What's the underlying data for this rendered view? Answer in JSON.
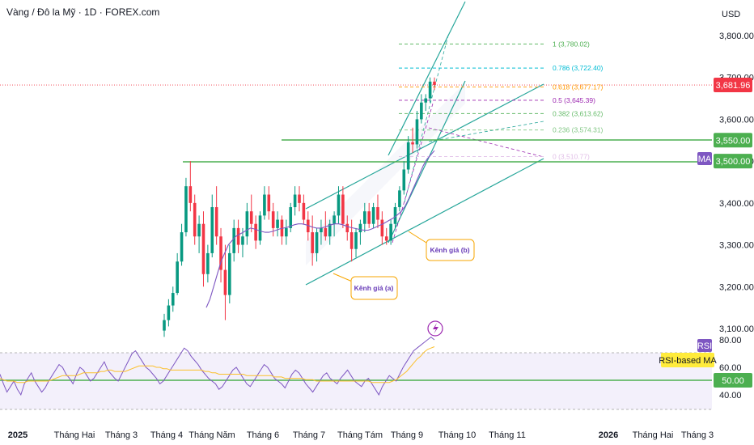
{
  "header": {
    "title": "Vàng / Đô la Mỹ · 1D · FOREX.com",
    "currency": "USD"
  },
  "chart_data": {
    "type": "candlestick",
    "title": "Vàng / Đô la Mỹ · 1D · FOREX.com",
    "price_axis": {
      "unit": "USD",
      "ticks": [
        "3,800.00",
        "3,700.00",
        "3,600.00",
        "3,500.00",
        "3,400.00",
        "3,300.00",
        "3,200.00",
        "3,100.00"
      ],
      "range": [
        3060,
        3870
      ]
    },
    "time_axis": {
      "labels": [
        "2025",
        "Tháng Hai",
        "Tháng 3",
        "Tháng 4",
        "Tháng Năm",
        "Tháng 6",
        "Tháng 7",
        "Tháng Tám",
        "Tháng 9",
        "Tháng 10",
        "Tháng 11",
        "2026",
        "Tháng Hai",
        "Tháng 3"
      ]
    },
    "price_tags": [
      {
        "label": "3,681.96",
        "value": 3681.96,
        "color": "#f23645"
      },
      {
        "label": "3,550.00",
        "value": 3550,
        "color": "#4caf50"
      },
      {
        "label": "3,500.00",
        "value": 3500,
        "color": "#4caf50"
      }
    ],
    "ma_tag": {
      "label": "MA",
      "color": "#7e57c2"
    },
    "horizontal_lines": [
      3550,
      3500
    ],
    "current_price": 3681.96,
    "fibonacci": [
      {
        "label": "1 (3,780.02)",
        "value": 3780.02,
        "color": "#4caf50"
      },
      {
        "label": "0.786 (3,722.40)",
        "value": 3722.4,
        "color": "#00bcd4"
      },
      {
        "label": "0.618 (3,677.17)",
        "value": 3677.17,
        "color": "#ff9800"
      },
      {
        "label": "0.5 (3,645.39)",
        "value": 3645.39,
        "color": "#9c27b0"
      },
      {
        "label": "0.382 (3,613.62)",
        "value": 3613.62,
        "color": "#66bb6a"
      },
      {
        "label": "0.236 (3,574.31)",
        "value": 3574.31,
        "color": "#81c784"
      },
      {
        "label": "0 (3,510.77)",
        "value": 3510.77,
        "color": "#e1bee7"
      }
    ],
    "annotations": [
      {
        "label": "Kênh giá (a)"
      },
      {
        "label": "Kênh giá (b)"
      }
    ],
    "candles": [
      {
        "o": 3095,
        "h": 3135,
        "l": 3080,
        "c": 3120
      },
      {
        "o": 3120,
        "h": 3170,
        "l": 3105,
        "c": 3155
      },
      {
        "o": 3155,
        "h": 3200,
        "l": 3140,
        "c": 3185
      },
      {
        "o": 3185,
        "h": 3280,
        "l": 3180,
        "c": 3260
      },
      {
        "o": 3260,
        "h": 3350,
        "l": 3250,
        "c": 3330
      },
      {
        "o": 3330,
        "h": 3460,
        "l": 3320,
        "c": 3440
      },
      {
        "o": 3440,
        "h": 3500,
        "l": 3380,
        "c": 3400
      },
      {
        "o": 3400,
        "h": 3420,
        "l": 3300,
        "c": 3320
      },
      {
        "o": 3320,
        "h": 3370,
        "l": 3280,
        "c": 3350
      },
      {
        "o": 3350,
        "h": 3380,
        "l": 3200,
        "c": 3230
      },
      {
        "o": 3230,
        "h": 3300,
        "l": 3210,
        "c": 3280
      },
      {
        "o": 3280,
        "h": 3420,
        "l": 3270,
        "c": 3390
      },
      {
        "o": 3390,
        "h": 3440,
        "l": 3300,
        "c": 3320
      },
      {
        "o": 3320,
        "h": 3340,
        "l": 3210,
        "c": 3240
      },
      {
        "o": 3240,
        "h": 3300,
        "l": 3120,
        "c": 3180
      },
      {
        "o": 3180,
        "h": 3300,
        "l": 3160,
        "c": 3280
      },
      {
        "o": 3280,
        "h": 3360,
        "l": 3260,
        "c": 3340
      },
      {
        "o": 3340,
        "h": 3360,
        "l": 3280,
        "c": 3300
      },
      {
        "o": 3300,
        "h": 3340,
        "l": 3270,
        "c": 3320
      },
      {
        "o": 3320,
        "h": 3400,
        "l": 3300,
        "c": 3380
      },
      {
        "o": 3380,
        "h": 3420,
        "l": 3330,
        "c": 3350
      },
      {
        "o": 3350,
        "h": 3370,
        "l": 3290,
        "c": 3310
      },
      {
        "o": 3310,
        "h": 3380,
        "l": 3300,
        "c": 3370
      },
      {
        "o": 3370,
        "h": 3440,
        "l": 3360,
        "c": 3420
      },
      {
        "o": 3420,
        "h": 3440,
        "l": 3360,
        "c": 3380
      },
      {
        "o": 3380,
        "h": 3400,
        "l": 3320,
        "c": 3340
      },
      {
        "o": 3340,
        "h": 3380,
        "l": 3320,
        "c": 3360
      },
      {
        "o": 3360,
        "h": 3370,
        "l": 3300,
        "c": 3320
      },
      {
        "o": 3320,
        "h": 3360,
        "l": 3300,
        "c": 3340
      },
      {
        "o": 3340,
        "h": 3400,
        "l": 3330,
        "c": 3390
      },
      {
        "o": 3390,
        "h": 3440,
        "l": 3370,
        "c": 3420
      },
      {
        "o": 3420,
        "h": 3440,
        "l": 3380,
        "c": 3400
      },
      {
        "o": 3400,
        "h": 3420,
        "l": 3350,
        "c": 3360
      },
      {
        "o": 3360,
        "h": 3380,
        "l": 3310,
        "c": 3330
      },
      {
        "o": 3330,
        "h": 3370,
        "l": 3250,
        "c": 3280
      },
      {
        "o": 3280,
        "h": 3340,
        "l": 3260,
        "c": 3330
      },
      {
        "o": 3330,
        "h": 3360,
        "l": 3300,
        "c": 3340
      },
      {
        "o": 3340,
        "h": 3380,
        "l": 3310,
        "c": 3320
      },
      {
        "o": 3320,
        "h": 3360,
        "l": 3300,
        "c": 3350
      },
      {
        "o": 3350,
        "h": 3380,
        "l": 3320,
        "c": 3370
      },
      {
        "o": 3370,
        "h": 3440,
        "l": 3350,
        "c": 3420
      },
      {
        "o": 3420,
        "h": 3440,
        "l": 3340,
        "c": 3350
      },
      {
        "o": 3350,
        "h": 3370,
        "l": 3310,
        "c": 3330
      },
      {
        "o": 3330,
        "h": 3360,
        "l": 3260,
        "c": 3290
      },
      {
        "o": 3290,
        "h": 3340,
        "l": 3270,
        "c": 3330
      },
      {
        "o": 3330,
        "h": 3360,
        "l": 3300,
        "c": 3350
      },
      {
        "o": 3350,
        "h": 3400,
        "l": 3330,
        "c": 3380
      },
      {
        "o": 3380,
        "h": 3400,
        "l": 3340,
        "c": 3350
      },
      {
        "o": 3350,
        "h": 3400,
        "l": 3340,
        "c": 3390
      },
      {
        "o": 3390,
        "h": 3420,
        "l": 3340,
        "c": 3360
      },
      {
        "o": 3360,
        "h": 3380,
        "l": 3300,
        "c": 3320
      },
      {
        "o": 3320,
        "h": 3340,
        "l": 3300,
        "c": 3310
      },
      {
        "o": 3310,
        "h": 3360,
        "l": 3300,
        "c": 3350
      },
      {
        "o": 3350,
        "h": 3400,
        "l": 3340,
        "c": 3390
      },
      {
        "o": 3390,
        "h": 3440,
        "l": 3380,
        "c": 3430
      },
      {
        "o": 3430,
        "h": 3500,
        "l": 3420,
        "c": 3480
      },
      {
        "o": 3480,
        "h": 3560,
        "l": 3470,
        "c": 3545
      },
      {
        "o": 3545,
        "h": 3580,
        "l": 3520,
        "c": 3540
      },
      {
        "o": 3540,
        "h": 3620,
        "l": 3530,
        "c": 3600
      },
      {
        "o": 3600,
        "h": 3660,
        "l": 3590,
        "c": 3640
      },
      {
        "o": 3640,
        "h": 3660,
        "l": 3620,
        "c": 3650
      },
      {
        "o": 3650,
        "h": 3700,
        "l": 3640,
        "c": 3690
      },
      {
        "o": 3690,
        "h": 3700,
        "l": 3670,
        "c": 3682
      }
    ],
    "ma": [
      3150,
      3170,
      3200,
      3230,
      3260,
      3280,
      3300,
      3310,
      3320,
      3325,
      3330,
      3335,
      3340,
      3338,
      3335,
      3332,
      3330,
      3330,
      3332,
      3335,
      3338,
      3340,
      3342,
      3345,
      3348,
      3350,
      3350,
      3348,
      3345,
      3342,
      3340,
      3340,
      3342,
      3345,
      3348,
      3350,
      3350,
      3348,
      3345,
      3342,
      3340,
      3338,
      3336,
      3335,
      3335,
      3338,
      3342,
      3346,
      3350,
      3355,
      3360,
      3365,
      3372,
      3380,
      3392,
      3410,
      3430,
      3450,
      3470,
      3490,
      3505,
      3515,
      3525
    ],
    "rsi_panel": {
      "ticks": [
        "80.00",
        "60.00",
        "40.00"
      ],
      "rsi_tag": {
        "label": "RSI",
        "color": "#7e57c2"
      },
      "rsi_ma_tag": {
        "label": "RSI-based MA",
        "color": "#ffeb3b"
      },
      "level_tag": {
        "label": "50.00",
        "value": 50,
        "color": "#4caf50"
      },
      "range": [
        30,
        85
      ],
      "rsi": [
        55,
        48,
        42,
        46,
        50,
        44,
        40,
        48,
        52,
        56,
        50,
        46,
        42,
        45,
        50,
        54,
        58,
        62,
        60,
        55,
        52,
        48,
        55,
        60,
        58,
        54,
        50,
        52,
        56,
        60,
        64,
        58,
        55,
        52,
        50,
        55,
        60,
        65,
        70,
        72,
        68,
        64,
        60,
        58,
        55,
        52,
        48,
        50,
        54,
        58,
        62,
        66,
        70,
        74,
        72,
        68,
        65,
        62,
        58,
        55,
        52,
        50,
        48,
        44,
        46,
        50,
        54,
        58,
        60,
        56,
        52,
        48,
        46,
        50,
        54,
        58,
        62,
        60,
        56,
        52,
        50,
        48,
        45,
        50,
        55,
        58,
        56,
        52,
        48,
        45,
        42,
        46,
        50,
        54,
        56,
        52,
        50,
        48,
        52,
        55,
        58,
        54,
        50,
        48,
        46,
        50,
        52,
        48,
        44,
        40,
        46,
        50,
        54,
        52,
        50,
        55,
        60,
        64,
        68,
        72,
        74,
        76,
        78,
        80,
        82,
        80
      ],
      "rsi_ma": [
        52,
        51,
        50,
        50,
        50,
        49,
        49,
        49,
        50,
        50,
        50,
        50,
        50,
        50,
        50,
        51,
        52,
        53,
        54,
        54,
        54,
        54,
        54,
        55,
        56,
        56,
        56,
        56,
        56,
        57,
        57,
        58,
        58,
        57,
        57,
        57,
        57,
        58,
        59,
        60,
        61,
        61,
        61,
        61,
        61,
        60,
        60,
        59,
        59,
        58,
        58,
        58,
        58,
        58,
        58,
        58,
        58,
        58,
        58,
        57,
        57,
        56,
        56,
        55,
        55,
        55,
        55,
        55,
        55,
        55,
        55,
        54,
        54,
        54,
        54,
        54,
        54,
        54,
        54,
        53,
        53,
        53,
        52,
        52,
        52,
        52,
        52,
        52,
        51,
        51,
        51,
        50,
        50,
        50,
        50,
        50,
        50,
        50,
        50,
        50,
        50,
        50,
        50,
        50,
        50,
        50,
        50,
        49,
        49,
        49,
        49,
        49,
        49,
        50,
        51,
        53,
        55,
        57,
        60,
        63,
        66,
        68,
        71,
        73,
        74,
        75
      ]
    }
  }
}
